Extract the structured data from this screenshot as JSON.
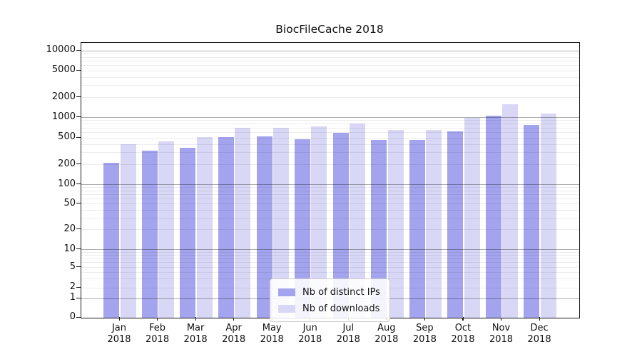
{
  "chart_data": {
    "type": "bar",
    "title": "BiocFileCache 2018",
    "categories": [
      "Jan 2018",
      "Feb 2018",
      "Mar 2018",
      "Apr 2018",
      "May 2018",
      "Jun 2018",
      "Jul 2018",
      "Aug 2018",
      "Sep 2018",
      "Oct 2018",
      "Nov 2018",
      "Dec 2018"
    ],
    "series": [
      {
        "name": "Nb of distinct IPs",
        "color": "#a4a4ee",
        "values": [
          215,
          320,
          355,
          515,
          520,
          480,
          595,
          470,
          460,
          625,
          1070,
          770
        ]
      },
      {
        "name": "Nb of downloads",
        "color": "#d8d8f6",
        "values": [
          400,
          440,
          515,
          700,
          695,
          730,
          820,
          655,
          650,
          985,
          1600,
          1145
        ]
      }
    ],
    "xlabel": "",
    "ylabel": "",
    "yscale": "symlog",
    "yticks": [
      0,
      1,
      2,
      5,
      10,
      20,
      50,
      100,
      200,
      500,
      1000,
      2000,
      5000,
      10000
    ],
    "ylim": [
      0,
      10000
    ],
    "grid": true,
    "legend": {
      "position": "lower center inside",
      "labels": [
        "Nb of distinct IPs",
        "Nb of downloads"
      ]
    }
  }
}
